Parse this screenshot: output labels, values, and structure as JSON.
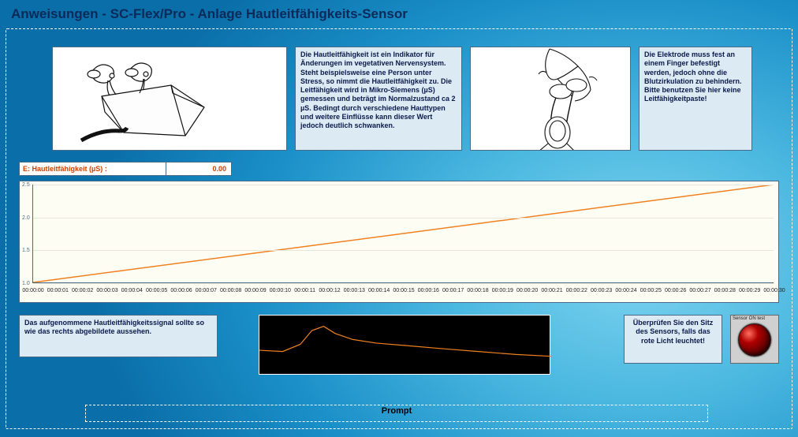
{
  "title": "Anweisungen - SC-Flex/Pro - Anlage Hautleitfähigkeits-Sensor",
  "panels": {
    "text1": "Die Hautleitfähigkeit ist ein Indikator für Änderungen im vegetativen Nervensystem. Steht beispielsweise eine Person unter Stress, so nimmt die Hautleitfähigkeit zu. Die Leitfähigkeit wird in Mikro-Siemens (µS) gemessen und beträgt im Normalzustand ca 2 µS. Bedingt durch verschiedene Hauttypen und weitere Einflüsse kann dieser Wert jedoch deutlich schwanken.",
    "text2": "Die Elektrode muss fest an einem Finger befestigt werden, jedoch ohne die Blutzirkulation zu behindern. Bitte benutzen Sie hier keine Leitfähigkeitpaste!",
    "text3": "Das aufgenommene Hautleitfähigkeitssignal sollte so wie das rechts abgebildete aussehen.",
    "text4": "Überprüfen Sie den Sitz des Sensors, falls das rote Licht leuchtet!"
  },
  "readout": {
    "label": "E: Hautleitfähigkeit  (µS) :",
    "value": "0.00",
    "label_color": "#d04000",
    "value_color": "#d04000",
    "bg": "#ffffff"
  },
  "main_chart": {
    "type": "line",
    "background_color": "#fefdf4",
    "grid_color": "#e8e6d8",
    "axis_color": "#4a6a8a",
    "line_color": "#f08020",
    "line_width": 1.5,
    "ylim": [
      1.0,
      2.5
    ],
    "ytick_step": 0.5,
    "xlim_labels": [
      "00:00:00",
      "00:00:01",
      "00:00:02",
      "00:00:03",
      "00:00:04",
      "00:00:05",
      "00:00:06",
      "00:00:07",
      "00:00:08",
      "00:00:09",
      "00:00:10",
      "00:00:11",
      "00:00:12",
      "00:00:13",
      "00:00:14",
      "00:00:15",
      "00:00:16",
      "00:00:17",
      "00:00:18",
      "00:00:19",
      "00:00:20",
      "00:00:21",
      "00:00:22",
      "00:00:23",
      "00:00:24",
      "00:00:25",
      "00:00:26",
      "00:00:27",
      "00:00:28",
      "00:00:29",
      "00:00:30"
    ],
    "series": {
      "x": [
        0,
        30
      ],
      "y": [
        1.0,
        2.5
      ]
    }
  },
  "sample_wave": {
    "type": "line",
    "background_color": "#000000",
    "line_color": "#f08020",
    "line_width": 1.2,
    "xlim": [
      0,
      100
    ],
    "ylim": [
      0,
      10
    ],
    "series": {
      "x": [
        0,
        8,
        14,
        18,
        22,
        26,
        32,
        40,
        50,
        62,
        75,
        88,
        100
      ],
      "y": [
        4.2,
        4.0,
        5.2,
        7.5,
        8.2,
        7.0,
        6.0,
        5.4,
        5.0,
        4.5,
        4.0,
        3.5,
        3.2
      ]
    }
  },
  "led": {
    "caption": "Sensor ON test",
    "on_color_center": "#ff7060",
    "on_color_mid": "#b00000",
    "on_color_edge": "#2a0000"
  },
  "prompt_label": "Prompt",
  "colors": {
    "panel_bg": "#dceaf4",
    "panel_border": "#4a6a8a",
    "title_color": "#0a2a5a"
  }
}
